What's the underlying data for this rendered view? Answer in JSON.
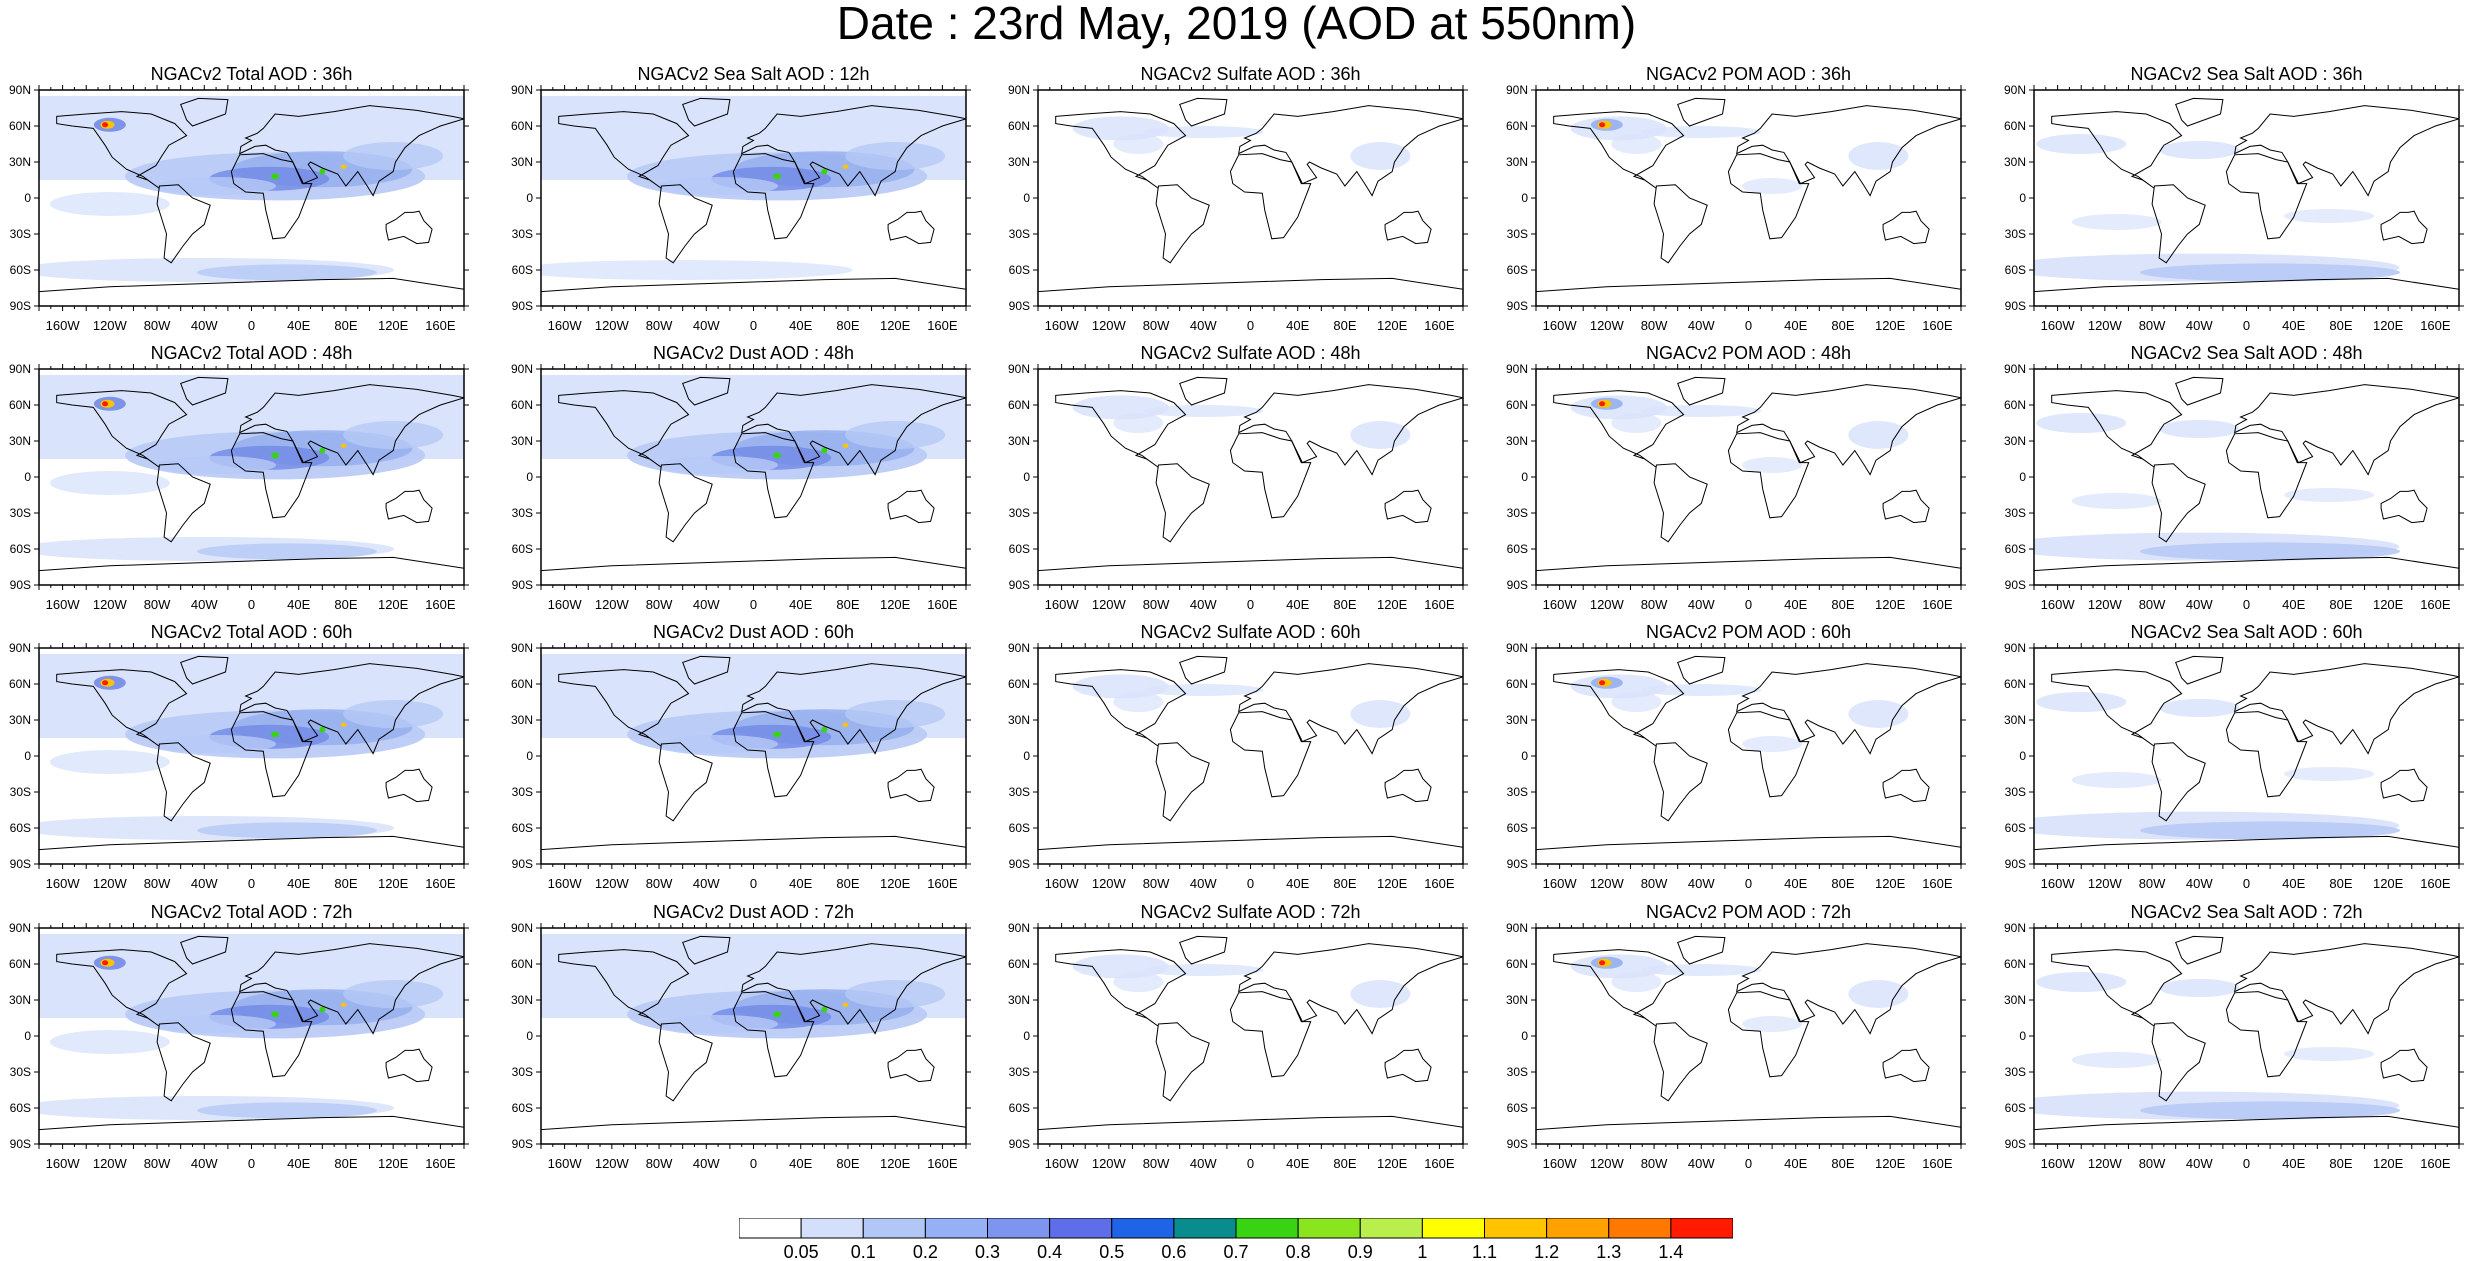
{
  "figure": {
    "title": "Date : 23rd May, 2019 (AOD at 550nm)"
  },
  "axes": {
    "lat_labels": [
      "90N",
      "60N",
      "30N",
      "0",
      "30S",
      "60S",
      "90S"
    ],
    "lon_labels": [
      "160W",
      "120W",
      "80W",
      "40W",
      "0",
      "40E",
      "80E",
      "120E",
      "160E"
    ]
  },
  "panels": [
    [
      "NGACv2 Total AOD : 36h",
      "NGACv2 Sea Salt  AOD : 12h",
      "NGACv2 Sulfate AOD : 36h",
      "NGACv2 POM AOD : 36h",
      "NGACv2 Sea Salt AOD : 36h"
    ],
    [
      "NGACv2 Total AOD : 48h",
      "NGACv2 Dust AOD : 48h",
      "NGACv2 Sulfate AOD : 48h",
      "NGACv2 POM AOD : 48h",
      "NGACv2 Sea Salt AOD : 48h"
    ],
    [
      "NGACv2 Total AOD : 60h",
      "NGACv2 Dust AOD : 60h",
      "NGACv2 Sulfate AOD : 60h",
      "NGACv2 POM AOD : 60h",
      "NGACv2 Sea Salt AOD : 60h"
    ],
    [
      "NGACv2 Total AOD : 72h",
      "NGACv2 Dust AOD : 72h",
      "NGACv2 Sulfate AOD : 72h",
      "NGACv2 POM AOD : 72h",
      "NGACv2 Sea Salt  AOD : 72h"
    ]
  ],
  "colorbar": {
    "labels": [
      "0.05",
      "0.1",
      "0.2",
      "0.3",
      "0.4",
      "0.5",
      "0.6",
      "0.7",
      "0.8",
      "0.9",
      "1",
      "1.1",
      "1.2",
      "1.3",
      "1.4"
    ],
    "colors": [
      "#ffffff",
      "#d4e0fb",
      "#b3c7f7",
      "#95b0f4",
      "#7d95ef",
      "#5e6ee8",
      "#1f63e6",
      "#0a8b8e",
      "#38d414",
      "#8ae51f",
      "#b9ee4d",
      "#ffff00",
      "#ffc300",
      "#ffa100",
      "#ff7800",
      "#ff1a00"
    ]
  },
  "field_colors": {
    "light": "#d9e3fb",
    "mid": "#b7c9f6",
    "strong": "#95afef",
    "dark": "#7189e6",
    "hot": "#ff1a00",
    "warm": "#ffc300",
    "green": "#38d414"
  }
}
